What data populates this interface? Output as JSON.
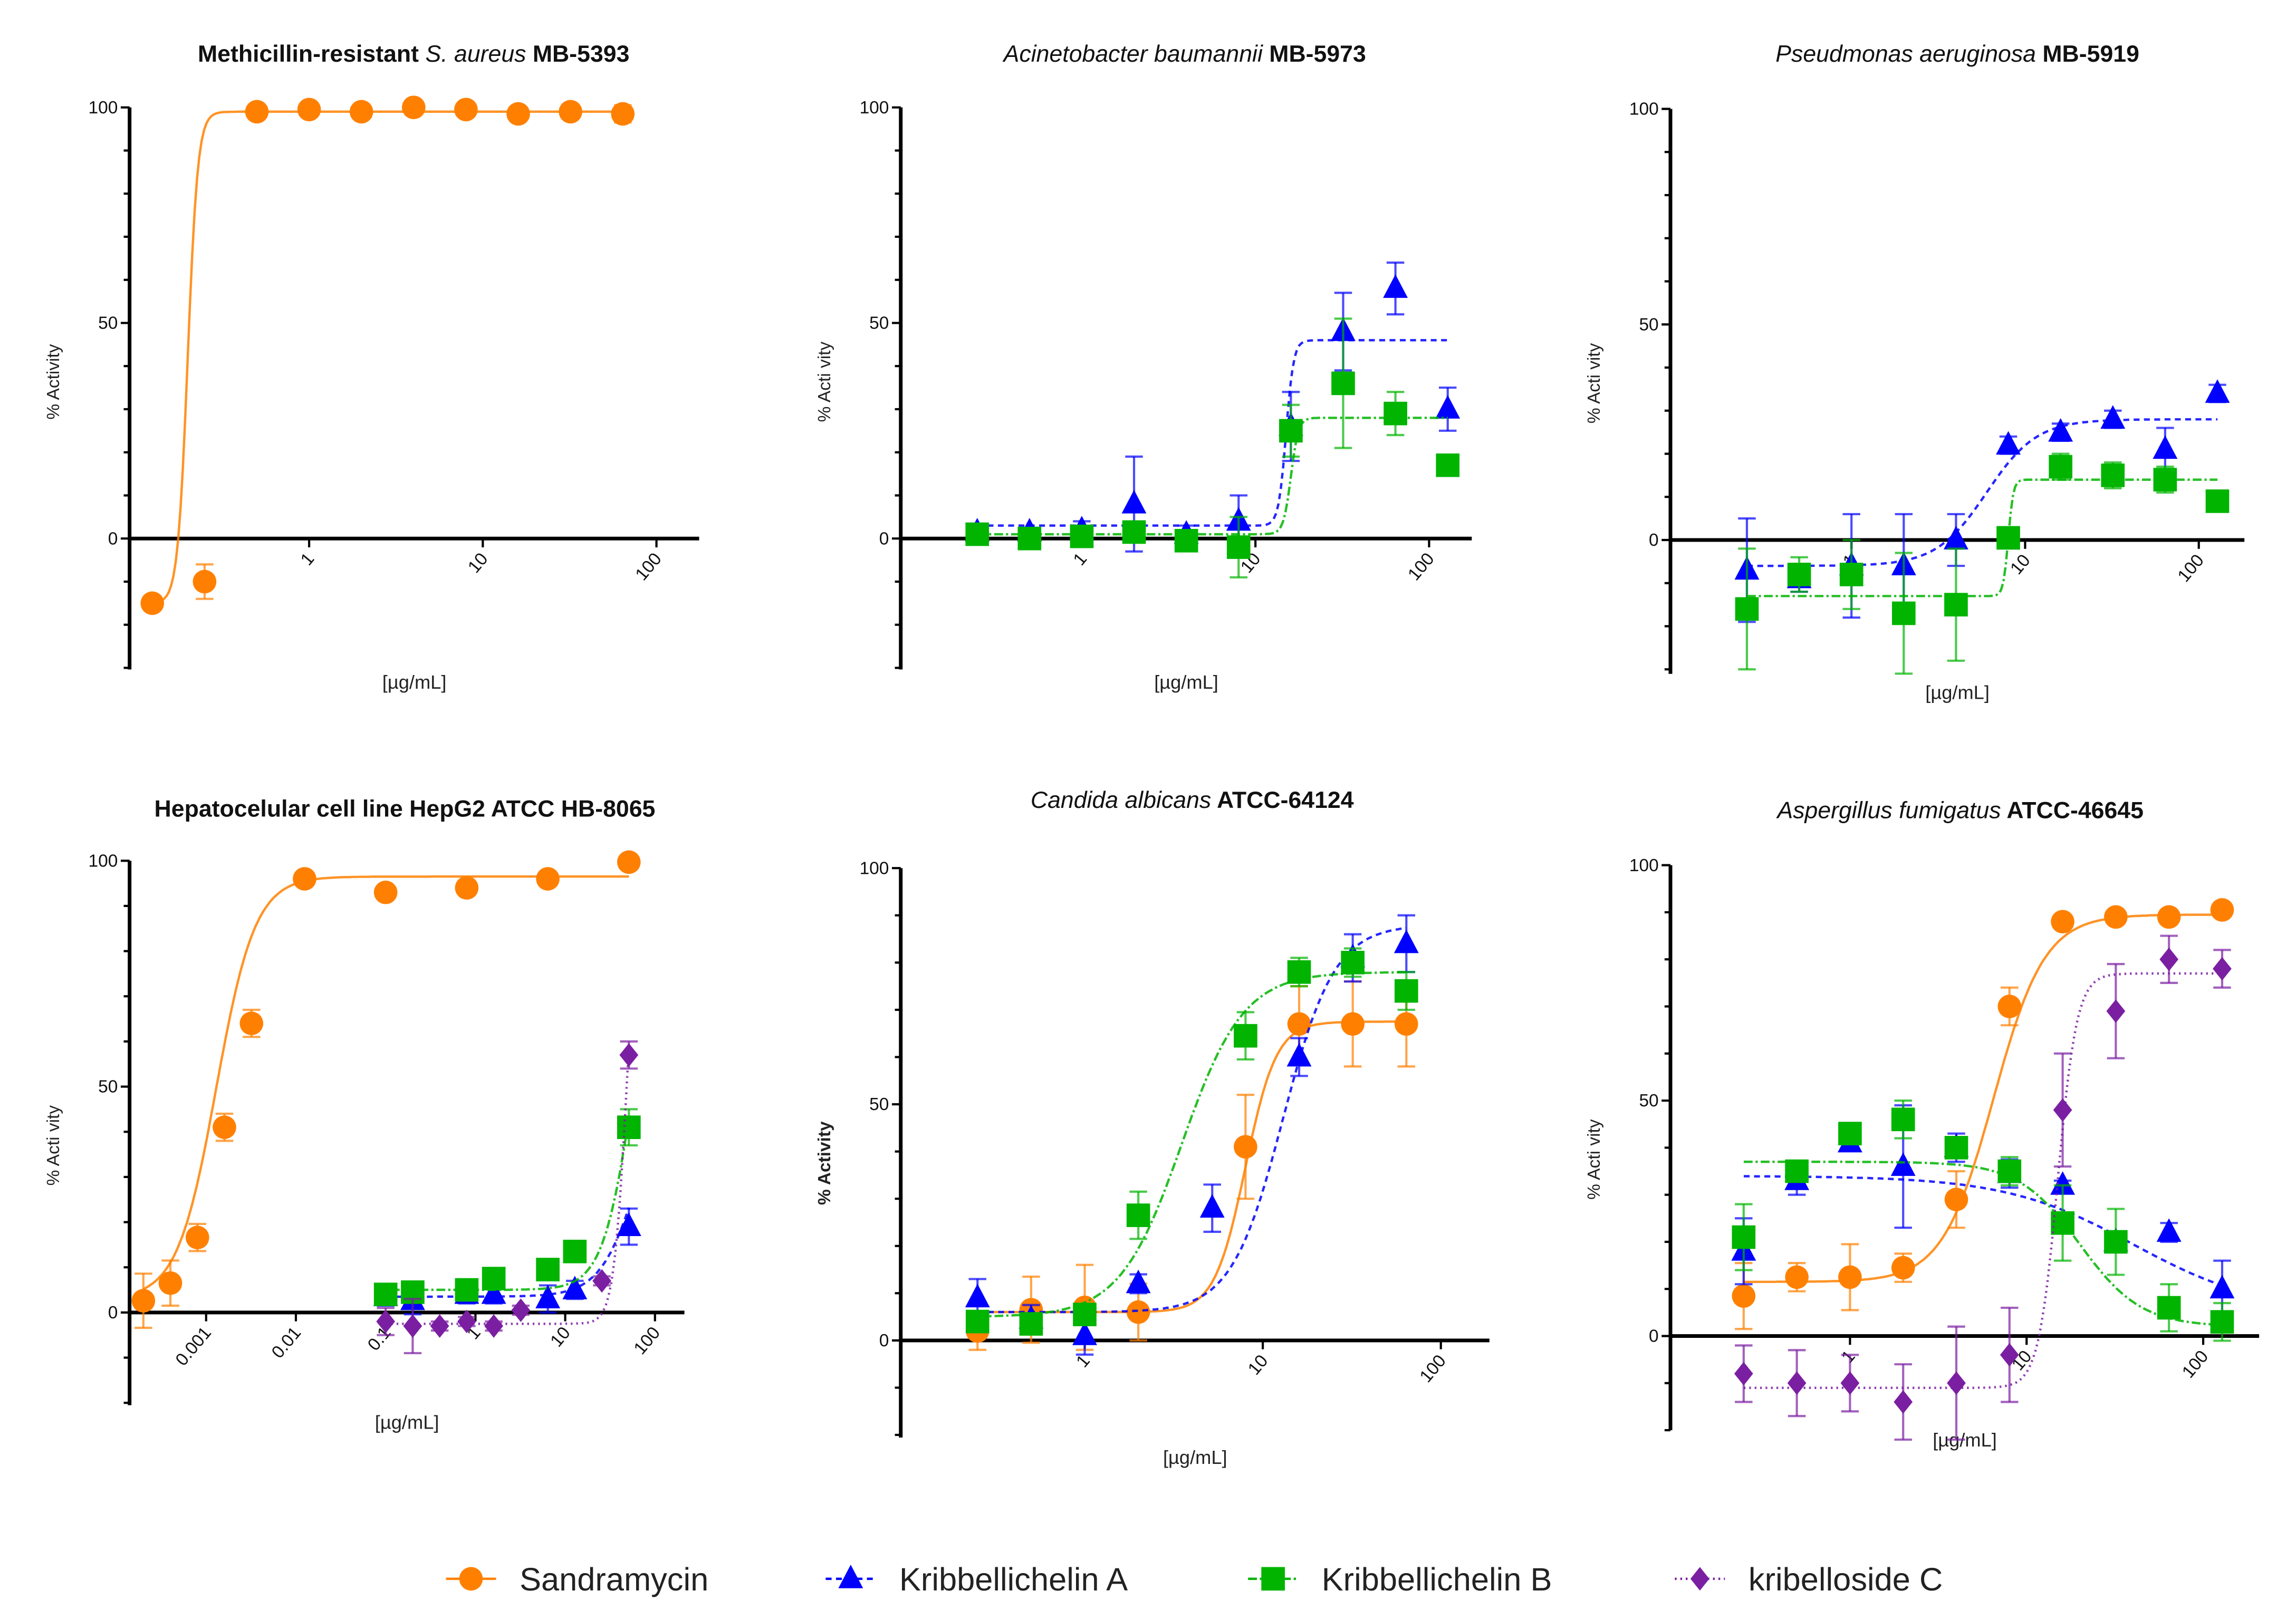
{
  "colors": {
    "Sandramycin": "#FF8000",
    "Kribbellichelin A": "#0000FF",
    "Kribbellichelin B": "#00B400",
    "kribelloside C": "#7B1FA2"
  },
  "legend": {
    "position": "bottom",
    "items": [
      {
        "name": "Sandramycin",
        "marker": "circle",
        "line": "solid"
      },
      {
        "name": "Kribbellichelin A",
        "marker": "triangle",
        "line": "dashed"
      },
      {
        "name": "Kribbellichelin B",
        "marker": "square",
        "line": "dash-dot"
      },
      {
        "name": "kribelloside C",
        "marker": "diamond",
        "line": "dotted"
      }
    ]
  },
  "chart_data": [
    {
      "type": "scatter",
      "title_parts": [
        {
          "text": "Methicillin-resistant ",
          "italic": false
        },
        {
          "text": "S. aureus",
          "italic": true
        },
        {
          "text": " MB-5393",
          "italic": false
        }
      ],
      "xlabel": "[µg/mL]",
      "ylabel": "% Activity",
      "xscale": "log",
      "ylim": [
        -30,
        100
      ],
      "yticks": [
        "0",
        "50",
        "100"
      ],
      "xticks": [
        "1",
        "10",
        "100"
      ],
      "series": [
        {
          "name": "Sandramycin",
          "x": [
            0.125,
            0.25,
            0.5,
            1,
            2,
            4,
            8,
            16,
            32,
            64
          ],
          "y": [
            -15,
            -10,
            99,
            99.5,
            99,
            100,
            99.5,
            98.5,
            99,
            98.5
          ],
          "sd": [
            0,
            4,
            0,
            0,
            0,
            0,
            0,
            0,
            0,
            2
          ],
          "fit": {
            "bottom": -15,
            "top": 99,
            "ec50": 0.2,
            "hill": 15
          }
        }
      ]
    },
    {
      "type": "scatter",
      "title_parts": [
        {
          "text": "Acinetobacter baumannii",
          "italic": true
        },
        {
          "text": " MB-5973",
          "italic": false
        }
      ],
      "xlabel": "[µg/mL]",
      "ylabel": "% Acti vity",
      "xscale": "log",
      "ylim": [
        -30,
        100
      ],
      "yticks": [
        "0",
        "50",
        "100"
      ],
      "xticks": [
        "1",
        "10",
        "100"
      ],
      "series": [
        {
          "name": "Kribbellichelin A",
          "x": [
            0.25,
            0.5,
            1,
            2,
            4,
            8,
            16,
            32,
            64,
            128
          ],
          "y": [
            1.5,
            1.5,
            2,
            8,
            1,
            4,
            26,
            48,
            58,
            30
          ],
          "sd": [
            1,
            1,
            2,
            11,
            2,
            6,
            8,
            9,
            6,
            5
          ],
          "fit": {
            "bottom": 3,
            "top": 46,
            "ec50": 15,
            "hill": 20
          }
        },
        {
          "name": "Kribbellichelin B",
          "x": [
            0.25,
            0.5,
            1,
            2,
            4,
            8,
            16,
            32,
            64,
            128
          ],
          "y": [
            1,
            0,
            0.5,
            1.5,
            -0.5,
            -2,
            25,
            36,
            29,
            17
          ],
          "sd": [
            1,
            1,
            1,
            2,
            1,
            7,
            6,
            15,
            5,
            2
          ],
          "fit": {
            "bottom": 1,
            "top": 28,
            "ec50": 16,
            "hill": 20
          }
        }
      ]
    },
    {
      "type": "scatter",
      "title_parts": [
        {
          "text": "Pseudmonas aeruginosa",
          "italic": true
        },
        {
          "text": " MB-5919",
          "italic": false
        }
      ],
      "xlabel": "[µg/mL]",
      "ylabel": "% Acti vity",
      "xscale": "log",
      "ylim": [
        -30,
        100
      ],
      "yticks": [
        "0",
        "50",
        "100"
      ],
      "xticks": [
        "1",
        "10",
        "100"
      ],
      "series": [
        {
          "name": "Kribbellichelin A",
          "x": [
            0.25,
            0.5,
            1,
            2,
            4,
            8,
            16,
            32,
            64,
            128
          ],
          "y": [
            -7,
            -9,
            -6,
            -6,
            0,
            22,
            25,
            28,
            21,
            34
          ],
          "sd": [
            12,
            3,
            12,
            12,
            6,
            2,
            2,
            2,
            5,
            2
          ],
          "fit": {
            "bottom": -6,
            "top": 28,
            "ec50": 6,
            "hill": 3
          }
        },
        {
          "name": "Kribbellichelin B",
          "x": [
            0.25,
            0.5,
            1,
            2,
            4,
            8,
            16,
            32,
            64,
            128
          ],
          "y": [
            -16,
            -8,
            -8,
            -17,
            -15,
            0.5,
            17,
            15,
            14,
            9
          ],
          "sd": [
            14,
            4,
            8,
            14,
            13,
            2,
            3,
            3,
            3,
            2
          ],
          "fit": {
            "bottom": -13,
            "top": 14,
            "ec50": 8,
            "hill": 30
          }
        }
      ]
    },
    {
      "type": "scatter",
      "title_parts": [
        {
          "text": "Hepatocelular cell line HepG2 ATCC HB-8065",
          "italic": false
        }
      ],
      "xlabel": "[µg/mL]",
      "ylabel": "% Acti vity",
      "xscale": "log",
      "ylim": [
        -20,
        100
      ],
      "yticks": [
        "0",
        "50",
        "100"
      ],
      "xticks": [
        "0.001",
        "0.01",
        "0.1",
        "1",
        "10",
        "100"
      ],
      "series": [
        {
          "name": "Sandramycin",
          "x": [
            0.0002,
            0.0004,
            0.0008,
            0.0016,
            0.0032,
            0.0125,
            0.1,
            0.8,
            6.4,
            51.2
          ],
          "y": [
            2.6,
            6.5,
            16.6,
            41,
            64,
            96,
            93,
            94,
            96,
            99.7
          ],
          "sd": [
            6,
            5,
            3,
            3,
            3,
            1,
            1,
            1,
            1,
            1
          ],
          "fit": {
            "bottom": 3,
            "top": 96.5,
            "ec50": 0.0013,
            "hill": 2
          }
        },
        {
          "name": "Kribbellichelin A",
          "x": [
            0.1,
            0.2,
            0.8,
            1.6,
            6.4,
            12.8,
            51.2
          ],
          "y": [
            3.5,
            2.6,
            4,
            4,
            3,
            5,
            19
          ],
          "sd": [
            2,
            3,
            2,
            2,
            3,
            2,
            4
          ],
          "fit": {
            "bottom": 3.5,
            "top": 60,
            "ec50": 70,
            "hill": 2
          }
        },
        {
          "name": "Kribbellichelin B",
          "x": [
            0.1,
            0.2,
            0.8,
            1.6,
            6.4,
            12.8,
            51.2
          ],
          "y": [
            4,
            4.5,
            5,
            7.5,
            9.5,
            13.5,
            41
          ],
          "sd": [
            1,
            1,
            1,
            1,
            1,
            1,
            4
          ],
          "fit": {
            "bottom": 5,
            "top": 100,
            "ec50": 60,
            "hill": 2.5
          }
        },
        {
          "name": "kribelloside C",
          "x": [
            0.1,
            0.2,
            0.4,
            0.8,
            1.6,
            3.2,
            25.6,
            51.2
          ],
          "y": [
            -2,
            -3,
            -3,
            -2,
            -3,
            0.5,
            7,
            57
          ],
          "sd": [
            3,
            6,
            1,
            1,
            1,
            1,
            1,
            3
          ],
          "fit": {
            "bottom": -2.5,
            "top": 100,
            "ec50": 48,
            "hill": 6
          }
        }
      ]
    },
    {
      "type": "scatter",
      "title_parts": [
        {
          "text": "Candida albicans",
          "italic": true
        },
        {
          "text": " ATCC-64124",
          "italic": false
        }
      ],
      "xlabel": "[µg/mL]",
      "ylabel": "% Activity",
      "xscale": "log",
      "ylim": [
        -20,
        100
      ],
      "yticks": [
        "0",
        "50",
        "100"
      ],
      "xticks": [
        "1",
        "10",
        "100"
      ],
      "series": [
        {
          "name": "Sandramycin",
          "x": [
            0.25,
            0.5,
            1,
            2,
            8,
            16,
            32,
            64
          ],
          "y": [
            2,
            6.5,
            7,
            6,
            41,
            67,
            67,
            67
          ],
          "sd": [
            4,
            7,
            9,
            6,
            11,
            8,
            9,
            9
          ],
          "fit": {
            "bottom": 6,
            "top": 67.5,
            "ec50": 8,
            "hill": 5
          }
        },
        {
          "name": "Kribbellichelin A",
          "x": [
            0.25,
            0.5,
            1,
            2,
            5.2,
            16,
            32,
            64
          ],
          "y": [
            9,
            4.5,
            1,
            12,
            28,
            60,
            81,
            84
          ],
          "sd": [
            4,
            3,
            4,
            2,
            5,
            4,
            5,
            6
          ],
          "fit": {
            "bottom": 6,
            "top": 88,
            "ec50": 13,
            "hill": 3
          }
        },
        {
          "name": "Kribbellichelin B",
          "x": [
            0.25,
            0.5,
            1,
            2,
            8,
            16,
            32,
            64
          ],
          "y": [
            4,
            3.5,
            5.5,
            26.5,
            64.5,
            78,
            80,
            74
          ],
          "sd": [
            2,
            2,
            2,
            5,
            5,
            3,
            3,
            4
          ],
          "fit": {
            "bottom": 5,
            "top": 78,
            "ec50": 3.5,
            "hill": 2.5
          }
        }
      ]
    },
    {
      "type": "scatter",
      "title_parts": [
        {
          "text": "Aspergillus fumigatus",
          "italic": true
        },
        {
          "text": " ATCC-46645",
          "italic": false
        }
      ],
      "xlabel": "[µg/mL]",
      "ylabel": "% Acti vity",
      "xscale": "log",
      "ylim": [
        -20,
        100
      ],
      "yticks": [
        "0",
        "50",
        "100"
      ],
      "xticks": [
        "1",
        "10",
        "100"
      ],
      "series": [
        {
          "name": "Sandramycin",
          "x": [
            0.25,
            0.5,
            1,
            2,
            4,
            8,
            16,
            32,
            64,
            128
          ],
          "y": [
            8.5,
            12.5,
            12.5,
            14.5,
            29,
            70,
            88,
            89,
            89,
            90.5
          ],
          "sd": [
            7,
            3,
            7,
            3,
            6,
            4,
            1,
            1,
            1,
            1
          ],
          "fit": {
            "bottom": 11.5,
            "top": 89.5,
            "ec50": 6.5,
            "hill": 3
          }
        },
        {
          "name": "Kribbellichelin A",
          "x": [
            0.25,
            0.5,
            1,
            2,
            4,
            8,
            16,
            32,
            64,
            128
          ],
          "y": [
            18,
            33,
            41,
            36,
            40,
            34.5,
            32,
            20,
            22,
            10
          ],
          "sd": [
            7,
            3,
            1,
            13,
            3,
            3,
            1,
            1,
            2,
            6
          ],
          "fit": {
            "bottom": 34,
            "top": 5,
            "ec50": 40,
            "hill": 1.2
          }
        },
        {
          "name": "Kribbellichelin B",
          "x": [
            0.25,
            0.5,
            1,
            2,
            4,
            8,
            16,
            32,
            64,
            128
          ],
          "y": [
            21,
            35,
            43,
            46,
            40,
            35,
            24,
            20,
            6,
            3
          ],
          "sd": [
            7,
            1,
            1,
            4,
            2,
            3,
            8,
            7,
            5,
            4
          ],
          "fit": {
            "bottom": 37,
            "top": 2,
            "ec50": 20,
            "hill": 2.5
          }
        },
        {
          "name": "kribelloside C",
          "x": [
            0.25,
            0.5,
            1,
            2,
            4,
            8,
            16,
            32,
            64,
            128
          ],
          "y": [
            -8,
            -10,
            -10,
            -14,
            -10,
            -4,
            48,
            69,
            80,
            78
          ],
          "sd": [
            6,
            7,
            6,
            8,
            12,
            10,
            12,
            10,
            5,
            4
          ],
          "fit": {
            "bottom": -11,
            "top": 77,
            "ec50": 15,
            "hill": 8
          }
        }
      ]
    }
  ]
}
